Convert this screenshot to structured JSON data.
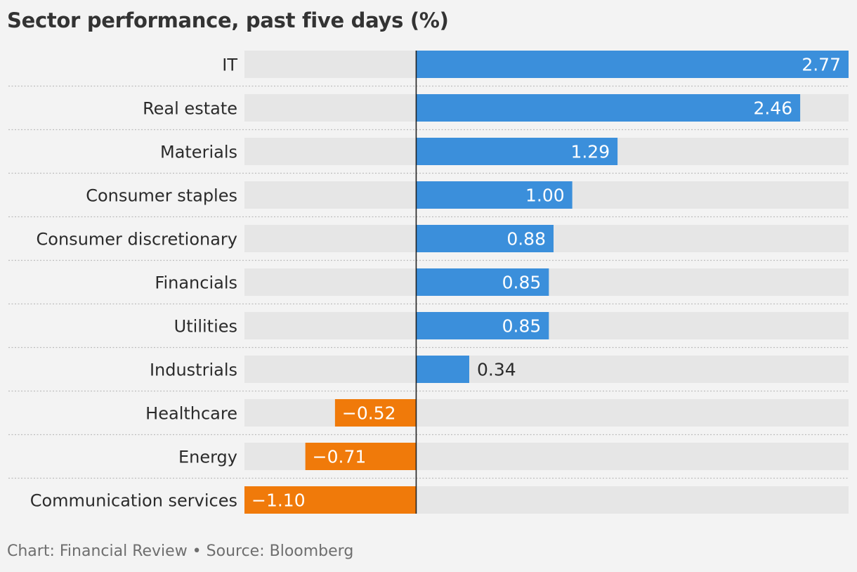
{
  "chart_data": {
    "type": "bar",
    "orientation": "horizontal",
    "title": "Sector performance, past five days (%)",
    "source": "Chart: Financial Review • Source: Bloomberg",
    "categories": [
      "IT",
      "Real estate",
      "Materials",
      "Consumer staples",
      "Consumer discretionary",
      "Financials",
      "Utilities",
      "Industrials",
      "Healthcare",
      "Energy",
      "Communication services"
    ],
    "values": [
      2.77,
      2.46,
      1.29,
      1.0,
      0.88,
      0.85,
      0.85,
      0.34,
      -0.52,
      -0.71,
      -1.1
    ],
    "value_labels": [
      "2.77",
      "2.46",
      "1.29",
      "1.00",
      "0.88",
      "0.85",
      "0.85",
      "0.34",
      "−0.52",
      "−0.71",
      "−1.10"
    ],
    "xlim": [
      -1.1,
      2.77
    ],
    "colors": {
      "positive": "#3b8fdb",
      "negative": "#f07a0a",
      "track": "#e6e6e6",
      "background": "#f3f3f3",
      "zero_line": "#222222"
    },
    "grid": false,
    "legend": "none"
  }
}
